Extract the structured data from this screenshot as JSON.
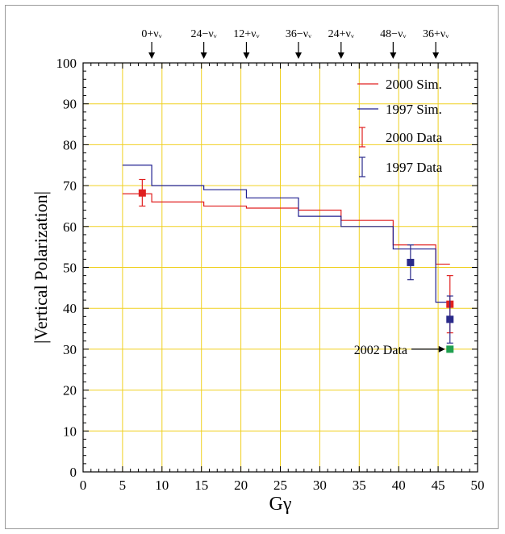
{
  "chart_data": {
    "type": "line",
    "xlabel": "Gγ",
    "ylabel": "|Vertical Polarization|",
    "xlim": [
      0,
      50
    ],
    "ylim": [
      0,
      100
    ],
    "x_ticks": [
      0,
      5,
      10,
      15,
      20,
      25,
      30,
      35,
      40,
      45,
      50
    ],
    "y_ticks": [
      0,
      10,
      20,
      30,
      40,
      50,
      60,
      70,
      80,
      90,
      100
    ],
    "grid": true,
    "grid_color": "#f0d020",
    "legend_position": "top-right",
    "resonances": [
      {
        "label": "0+νᵥ",
        "x": 8.7
      },
      {
        "label": "24−νᵥ",
        "x": 15.3
      },
      {
        "label": "12+νᵥ",
        "x": 20.7
      },
      {
        "label": "36−νᵥ",
        "x": 27.3
      },
      {
        "label": "24+νᵥ",
        "x": 32.7
      },
      {
        "label": "48−νᵥ",
        "x": 39.3
      },
      {
        "label": "36+νᵥ",
        "x": 44.7
      }
    ],
    "series": [
      {
        "name": "2000 Sim.",
        "kind": "step",
        "color": "#e02020",
        "x": [
          5,
          8.7,
          8.7,
          15.3,
          15.3,
          20.7,
          20.7,
          27.3,
          27.3,
          32.7,
          32.7,
          39.3,
          39.3,
          44.7,
          44.7,
          46.5
        ],
        "y": [
          68,
          68,
          66,
          66,
          65,
          65,
          64.5,
          64.5,
          64,
          64,
          61.5,
          61.5,
          55.5,
          55.5,
          50.8,
          50.8
        ]
      },
      {
        "name": "1997 Sim.",
        "kind": "step",
        "color": "#202090",
        "x": [
          5,
          8.7,
          8.7,
          15.3,
          15.3,
          20.7,
          20.7,
          27.3,
          27.3,
          32.7,
          32.7,
          39.3,
          39.3,
          44.7,
          44.7,
          46.5
        ],
        "y": [
          75,
          75,
          70,
          70,
          69,
          69,
          67,
          67,
          62.5,
          62.5,
          60,
          60,
          54.5,
          54.5,
          41.5,
          41.5
        ]
      },
      {
        "name": "2000 Data",
        "kind": "errorbar",
        "color": "#e02020",
        "points": [
          {
            "x": 7.5,
            "y": 68.2,
            "lo": 65,
            "hi": 71.5
          },
          {
            "x": 46.5,
            "y": 41,
            "lo": 34,
            "hi": 48
          }
        ]
      },
      {
        "name": "1997 Data",
        "kind": "errorbar",
        "color": "#2a2a8a",
        "points": [
          {
            "x": 41.5,
            "y": 51.2,
            "lo": 47,
            "hi": 55.5
          },
          {
            "x": 46.5,
            "y": 37.3,
            "lo": 31.5,
            "hi": 43
          }
        ]
      },
      {
        "name": "2002 Data",
        "kind": "point",
        "color": "#20a050",
        "points": [
          {
            "x": 46.5,
            "y": 30
          }
        ]
      }
    ],
    "annotations": [
      {
        "text": "2002 Data",
        "arrow_to_x": 46.5,
        "arrow_to_y": 30
      }
    ]
  }
}
